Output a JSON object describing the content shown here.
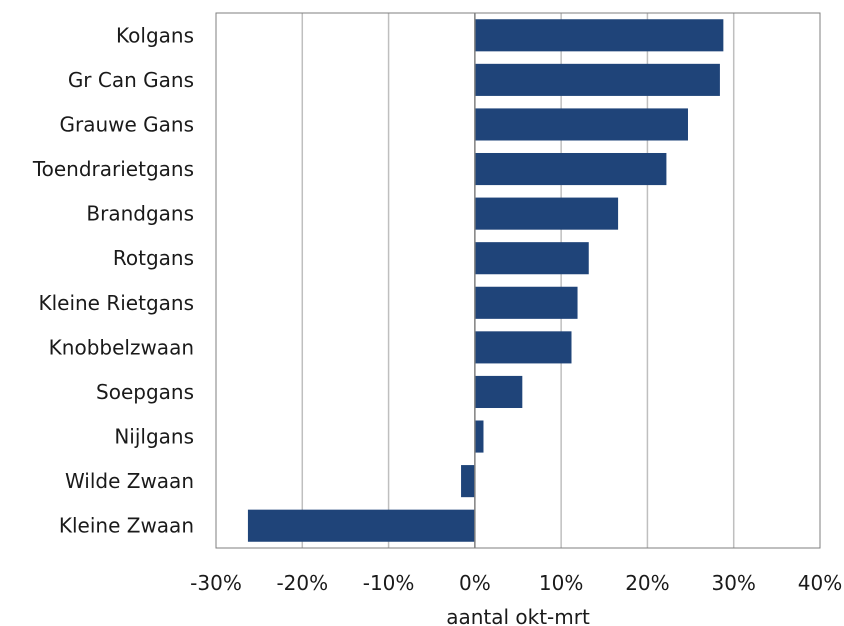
{
  "chart_data": {
    "type": "bar",
    "orientation": "horizontal",
    "categories": [
      "Kolgans",
      "Gr Can Gans",
      "Grauwe Gans",
      "Toendrarietgans",
      "Brandgans",
      "Rotgans",
      "Kleine Rietgans",
      "Knobbelzwaan",
      "Soepgans",
      "Nijlgans",
      "Wilde Zwaan",
      "Kleine Zwaan"
    ],
    "values": [
      28.8,
      28.4,
      24.7,
      22.2,
      16.6,
      13.2,
      11.9,
      11.2,
      5.5,
      1.0,
      -1.6,
      -26.3
    ],
    "xlabel": "aantal okt-mrt",
    "xlim": [
      -30,
      40
    ],
    "xticks": [
      -30,
      -20,
      -10,
      0,
      10,
      20,
      30,
      40
    ],
    "xtick_labels": [
      "-30%",
      "-20%",
      "-10%",
      "0%",
      "10%",
      "20%",
      "30%",
      "40%"
    ],
    "grid": "vertical",
    "bar_color": "#1f4479",
    "grid_color": "#bfbfbf",
    "axis_color": "#7f7f7f"
  }
}
